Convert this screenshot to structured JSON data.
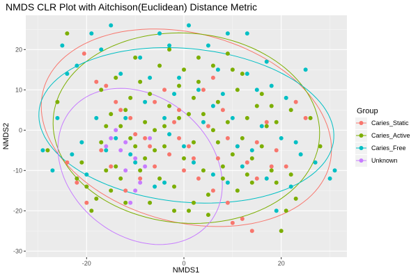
{
  "chart_data": {
    "type": "scatter",
    "title": "NMDS CLR Plot with Aitchison(Euclidean) Distance Metric",
    "xlabel": "NMDS1",
    "ylabel": "NMDS2",
    "xlim": [
      -32.5,
      33.5
    ],
    "ylim": [
      -31.5,
      28.5
    ],
    "xticks": [
      -20,
      0,
      20
    ],
    "yticks": [
      -30,
      -20,
      -10,
      0,
      10,
      20
    ],
    "grid": true,
    "panel_color": "#EBEBEB",
    "legend": {
      "title": "Group",
      "position": "right",
      "entries": [
        "Caries_Static",
        "Caries_Active",
        "Caries_Free",
        "Unknown"
      ]
    },
    "ellipses": [
      {
        "group": "Caries_Static",
        "color": "#F8766D",
        "cx": 0.5,
        "cy": 0.6,
        "rx": 31,
        "ry": 23,
        "angle": -24
      },
      {
        "group": "Caries_Active",
        "color": "#7CAE00",
        "cx": 0.5,
        "cy": 0.5,
        "rx": 27.5,
        "ry": 23.5,
        "angle": -10
      },
      {
        "group": "Caries_Free",
        "color": "#00BFC4",
        "cx": 0.5,
        "cy": 1.2,
        "rx": 30.5,
        "ry": 19,
        "angle": -8
      },
      {
        "group": "Unknown",
        "color": "#C77CFF",
        "cx": -9,
        "cy": -9,
        "rx": 15.5,
        "ry": 20.5,
        "angle": 30
      }
    ],
    "series": [
      {
        "name": "Caries_Static",
        "color": "#F8766D",
        "points": [
          [
            -20.5,
            19
          ],
          [
            -18,
            12
          ],
          [
            -16,
            11
          ],
          [
            -14,
            7
          ],
          [
            -13,
            5
          ],
          [
            -11,
            3
          ],
          [
            -10,
            -1
          ],
          [
            -8,
            -2
          ],
          [
            -6,
            7
          ],
          [
            -4,
            10
          ],
          [
            -2,
            2
          ],
          [
            -1,
            -2
          ],
          [
            1,
            -4
          ],
          [
            2,
            -7
          ],
          [
            4,
            10
          ],
          [
            6,
            13
          ],
          [
            8,
            5
          ],
          [
            9,
            -2
          ],
          [
            11,
            -4
          ],
          [
            13,
            -8
          ],
          [
            15,
            -3
          ],
          [
            17,
            2
          ],
          [
            19,
            -5
          ],
          [
            21,
            -9
          ],
          [
            23,
            7
          ],
          [
            25,
            3
          ],
          [
            -24,
            -8
          ],
          [
            -22,
            -13
          ],
          [
            -20,
            -18
          ],
          [
            -17,
            -5
          ],
          [
            -15,
            -9
          ],
          [
            -12,
            -15
          ],
          [
            -9,
            -12
          ],
          [
            -6,
            -9
          ],
          [
            -3,
            -6
          ],
          [
            0,
            -10
          ],
          [
            3,
            -12
          ],
          [
            6,
            -15
          ],
          [
            9,
            -18
          ],
          [
            12,
            -22
          ],
          [
            15,
            -12
          ],
          [
            18,
            -9
          ],
          [
            10,
            -23
          ],
          [
            14,
            -25
          ],
          [
            7,
            -7
          ],
          [
            5,
            1
          ],
          [
            -7,
            -4
          ],
          [
            -1,
            5
          ]
        ]
      },
      {
        "name": "Caries_Active",
        "color": "#7CAE00",
        "points": [
          [
            -24,
            24
          ],
          [
            -21,
            -8
          ],
          [
            -20,
            -14
          ],
          [
            -18,
            -17
          ],
          [
            -17,
            -3
          ],
          [
            -16,
            1
          ],
          [
            -15,
            4
          ],
          [
            -14,
            -9
          ],
          [
            -13,
            -12
          ],
          [
            -12,
            5
          ],
          [
            -11,
            8
          ],
          [
            -10,
            -4
          ],
          [
            -9,
            -10
          ],
          [
            -8,
            2
          ],
          [
            -7,
            9
          ],
          [
            -6,
            -5
          ],
          [
            -5,
            -12
          ],
          [
            -4,
            1
          ],
          [
            -3,
            6
          ],
          [
            -2,
            -14
          ],
          [
            -1,
            3
          ],
          [
            0,
            -7
          ],
          [
            1,
            4
          ],
          [
            2,
            -3
          ],
          [
            3,
            12
          ],
          [
            4,
            -10
          ],
          [
            5,
            -16
          ],
          [
            6,
            0
          ],
          [
            7,
            7
          ],
          [
            8,
            -12
          ],
          [
            9,
            2
          ],
          [
            10,
            -6
          ],
          [
            11,
            10
          ],
          [
            12,
            -2
          ],
          [
            13,
            3
          ],
          [
            14,
            -13
          ],
          [
            15,
            6
          ],
          [
            16,
            -4
          ],
          [
            17,
            1
          ],
          [
            18,
            -10
          ],
          [
            19,
            -13
          ],
          [
            20,
            -25
          ],
          [
            21,
            -20
          ],
          [
            22,
            5
          ],
          [
            23,
            -17
          ],
          [
            -28,
            -5
          ],
          [
            -26,
            7
          ],
          [
            -19,
            -20
          ],
          [
            -22,
            -12
          ],
          [
            -12,
            -18
          ],
          [
            -7,
            -18
          ],
          [
            -3,
            20
          ],
          [
            0,
            15
          ],
          [
            3,
            18
          ],
          [
            6,
            16
          ],
          [
            9,
            19
          ],
          [
            12,
            14
          ],
          [
            -5,
            16
          ],
          [
            -9,
            12
          ],
          [
            -14,
            13
          ],
          [
            -17,
            10
          ],
          [
            -2,
            -20
          ],
          [
            2,
            -18
          ],
          [
            5,
            -21
          ],
          [
            8,
            -9
          ],
          [
            11,
            -15
          ],
          [
            -10,
            18
          ],
          [
            -15,
            -15
          ],
          [
            1,
            -20
          ],
          [
            -6,
            0
          ],
          [
            4,
            4
          ],
          [
            -4,
            -4
          ],
          [
            7,
            -3
          ],
          [
            -11,
            -2
          ],
          [
            13,
            -11
          ],
          [
            16,
            9
          ],
          [
            -16,
            -10
          ],
          [
            -8,
            -7
          ],
          [
            19,
            2
          ],
          [
            22,
            -11
          ],
          [
            26,
            3
          ],
          [
            28,
            -4
          ],
          [
            -1,
            11
          ],
          [
            2,
            8
          ],
          [
            -13,
            1
          ],
          [
            10,
            15
          ],
          [
            14,
            -7
          ],
          [
            18,
            6
          ]
        ]
      },
      {
        "name": "Caries_Free",
        "color": "#00BFC4",
        "points": [
          [
            -29,
            -5
          ],
          [
            -26,
            3
          ],
          [
            -24,
            14
          ],
          [
            -21,
            -3
          ],
          [
            -19,
            24
          ],
          [
            -17,
            20
          ],
          [
            -15,
            26
          ],
          [
            -13,
            14
          ],
          [
            -11,
            -6
          ],
          [
            -9,
            18
          ],
          [
            -7,
            13
          ],
          [
            -5,
            24
          ],
          [
            -3,
            21
          ],
          [
            -1,
            13
          ],
          [
            1,
            26
          ],
          [
            3,
            10
          ],
          [
            5,
            21
          ],
          [
            7,
            15
          ],
          [
            9,
            24
          ],
          [
            11,
            -4
          ],
          [
            13,
            14
          ],
          [
            15,
            10
          ],
          [
            17,
            -12
          ],
          [
            19,
            -20
          ],
          [
            21,
            8
          ],
          [
            23,
            -3
          ],
          [
            25,
            15
          ],
          [
            -27,
            -10
          ],
          [
            -23,
            -6
          ],
          [
            -20,
            -11
          ],
          [
            -18,
            3
          ],
          [
            -16,
            -5
          ],
          [
            -14,
            -2
          ],
          [
            -12,
            3
          ],
          [
            -10,
            -8
          ],
          [
            -8,
            7
          ],
          [
            -6,
            -14
          ],
          [
            -4,
            3
          ],
          [
            -2,
            9
          ],
          [
            0,
            -4
          ],
          [
            2,
            -8
          ],
          [
            4,
            2
          ],
          [
            6,
            -11
          ],
          [
            8,
            9
          ],
          [
            10,
            3
          ],
          [
            12,
            -9
          ],
          [
            14,
            -5
          ],
          [
            16,
            1
          ],
          [
            18,
            11
          ],
          [
            20,
            -2
          ],
          [
            22,
            -14
          ],
          [
            24,
            -6
          ],
          [
            27,
            -8
          ],
          [
            30,
            -12
          ],
          [
            -25,
            21
          ],
          [
            -22,
            16
          ],
          [
            13,
            24
          ],
          [
            17,
            17
          ],
          [
            -4,
            -13
          ],
          [
            6,
            6
          ],
          [
            31,
            -10
          ],
          [
            -3,
            -1
          ],
          [
            9,
            -13
          ]
        ]
      },
      {
        "name": "Unknown",
        "color": "#C77CFF",
        "points": [
          [
            -14,
            0
          ],
          [
            -12,
            -3
          ],
          [
            -10,
            -7
          ],
          [
            -8,
            -9
          ],
          [
            -16,
            -4
          ],
          [
            -11,
            -18
          ],
          [
            -9,
            -13
          ],
          [
            -13,
            -5
          ],
          [
            -7,
            -2
          ],
          [
            -15,
            -2
          ],
          [
            -12,
            -10
          ],
          [
            -10,
            -15
          ]
        ]
      }
    ]
  }
}
